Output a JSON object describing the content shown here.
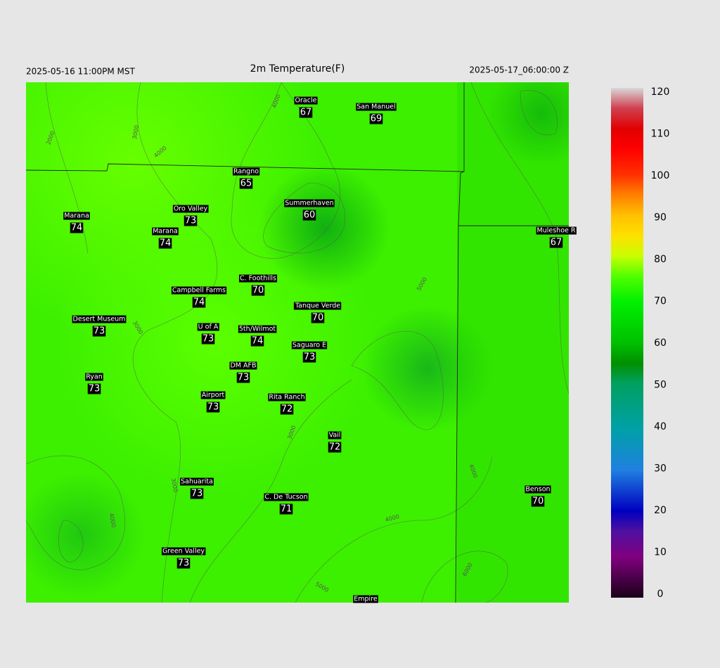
{
  "header": {
    "left": "2025-05-16 11:00PM MST",
    "title": "2m Temperature(F)",
    "right": "2025-05-17_06:00:00 Z"
  },
  "stations": [
    {
      "name": "Oracle",
      "temp": 67
    },
    {
      "name": "San Manuel",
      "temp": 69
    },
    {
      "name": "Rangno",
      "temp": 65
    },
    {
      "name": "Summerhaven",
      "temp": 60
    },
    {
      "name": "Marana",
      "temp": 74
    },
    {
      "name": "Oro Valley",
      "temp": 73
    },
    {
      "name": "Marana",
      "temp": 74
    },
    {
      "name": "Muleshoe R",
      "temp": 67
    },
    {
      "name": "C. Foothills",
      "temp": 70
    },
    {
      "name": "Campbell Farms",
      "temp": 74
    },
    {
      "name": "Tanque Verde",
      "temp": 70
    },
    {
      "name": "Desert Museum",
      "temp": 73
    },
    {
      "name": "U of A",
      "temp": 73
    },
    {
      "name": "5th/Wilmot",
      "temp": 74
    },
    {
      "name": "Saguaro E",
      "temp": 73
    },
    {
      "name": "DM AFB",
      "temp": 73
    },
    {
      "name": "Ryan",
      "temp": 73
    },
    {
      "name": "Airport",
      "temp": 73
    },
    {
      "name": "Rita Ranch",
      "temp": 72
    },
    {
      "name": "Vail",
      "temp": 72
    },
    {
      "name": "Sahuarita",
      "temp": 73
    },
    {
      "name": "C. De Tucson",
      "temp": 71
    },
    {
      "name": "Benson",
      "temp": 70
    },
    {
      "name": "Green Valley",
      "temp": 73
    },
    {
      "name": "Empire"
    }
  ],
  "contour_labels": [
    "2000",
    "3000",
    "4000",
    "3000",
    "4000",
    "3000",
    "4000",
    "5000",
    "4000",
    "3000",
    "4000",
    "5000",
    "6000"
  ],
  "colorbar": {
    "range": [
      0,
      120
    ],
    "ticks": [
      0,
      10,
      20,
      30,
      40,
      50,
      60,
      70,
      80,
      90,
      100,
      110,
      120
    ]
  }
}
